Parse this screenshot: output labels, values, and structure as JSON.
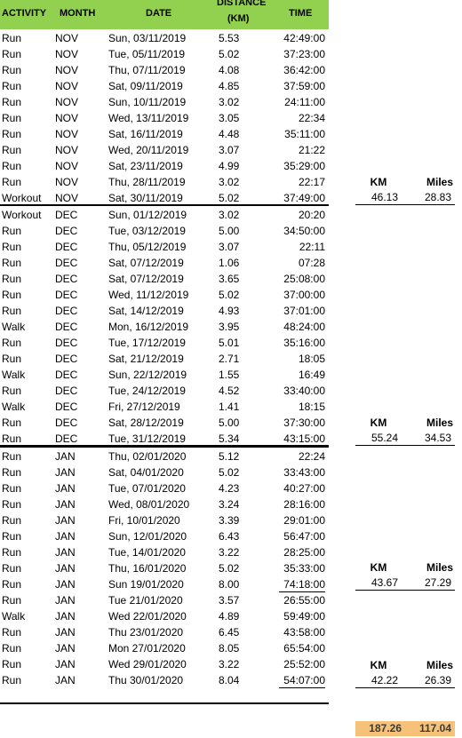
{
  "header": {
    "activity": "ACTIVITY",
    "month": "MONTH",
    "date": "DATE",
    "distance_line1": "DISTANCE",
    "distance_line2": "(KM)",
    "time": "TIME"
  },
  "rows": [
    [
      "Run",
      "NOV",
      "Sun, 03/11/2019",
      "5.53",
      "42:49:00"
    ],
    [
      "Run",
      "NOV",
      "Tue, 05/11/2019",
      "5.02",
      "37:23:00"
    ],
    [
      "Run",
      "NOV",
      "Thu, 07/11/2019",
      "4.08",
      "36:42:00"
    ],
    [
      "Run",
      "NOV",
      "Sat, 09/11/2019",
      "4.85",
      "37:59:00"
    ],
    [
      "Run",
      "NOV",
      "Sun, 10/11/2019",
      "3.02",
      "24:11:00"
    ],
    [
      "Run",
      "NOV",
      "Wed, 13/11/2019",
      "3.05",
      "22:34"
    ],
    [
      "Run",
      "NOV",
      "Sat, 16/11/2019",
      "4.48",
      "35:11:00"
    ],
    [
      "Run",
      "NOV",
      "Wed, 20/11/2019",
      "3.07",
      "21:22"
    ],
    [
      "Run",
      "NOV",
      "Sat, 23/11/2019",
      "4.99",
      "35:29:00"
    ],
    [
      "Run",
      "NOV",
      "Thu, 28/11/2019",
      "3.02",
      "22:17"
    ],
    [
      "Workout",
      "NOV",
      "Sat, 30/11/2019",
      "5.02",
      "37:49:00"
    ],
    [
      "Workout",
      "DEC",
      "Sun, 01/12/2019",
      "3.02",
      "20:20"
    ],
    [
      "Run",
      "DEC",
      "Tue, 03/12/2019",
      "5.00",
      "34:50:00"
    ],
    [
      "Run",
      "DEC",
      "Thu, 05/12/2019",
      "3.07",
      "22:11"
    ],
    [
      "Run",
      "DEC",
      "Sat, 07/12/2019",
      "1.06",
      "07:28"
    ],
    [
      "Run",
      "DEC",
      "Sat, 07/12/2019",
      "3.65",
      "25:08:00"
    ],
    [
      "Run",
      "DEC",
      "Wed, 11/12/2019",
      "5.02",
      "37:00:00"
    ],
    [
      "Run",
      "DEC",
      "Sat, 14/12/2019",
      "4.93",
      "37:01:00"
    ],
    [
      "Walk",
      "DEC",
      "Mon, 16/12/2019",
      "3.95",
      "48:24:00"
    ],
    [
      "Run",
      "DEC",
      "Tue, 17/12/2019",
      "5.01",
      "35:16:00"
    ],
    [
      "Run",
      "DEC",
      "Sat, 21/12/2019",
      "2.71",
      "18:05"
    ],
    [
      "Walk",
      "DEC",
      "Sun, 22/12/2019",
      "1.55",
      "16:49"
    ],
    [
      "Run",
      "DEC",
      "Tue, 24/12/2019",
      "4.52",
      "33:40:00"
    ],
    [
      "Walk",
      "DEC",
      "Fri, 27/12/2019",
      "1.41",
      "18:15"
    ],
    [
      "Run",
      "DEC",
      "Sat, 28/12/2019",
      "5.00",
      "37:30:00"
    ],
    [
      "Run",
      "DEC",
      "Tue, 31/12/2019",
      "5.34",
      "43:15:00"
    ],
    [
      "Run",
      "JAN",
      "Thu, 02/01/2020",
      "5.12",
      "22:24"
    ],
    [
      "Run",
      "JAN",
      "Sat, 04/01/2020",
      "5.02",
      "33:43:00"
    ],
    [
      "Run",
      "JAN",
      "Tue, 07/01/2020",
      "4.23",
      "40:27:00"
    ],
    [
      "Run",
      "JAN",
      "Wed, 08/01/2020",
      "3.24",
      "28:16:00"
    ],
    [
      "Run",
      "JAN",
      "Fri, 10/01/2020",
      "3.39",
      "29:01:00"
    ],
    [
      "Run",
      "JAN",
      "Sun, 12/01/2020",
      "6.43",
      "56:47:00"
    ],
    [
      "Run",
      "JAN",
      "Tue, 14/01/2020",
      "3.22",
      "28:25:00"
    ],
    [
      "Run",
      "JAN",
      "Thu, 16/01/2020",
      "5.02",
      "35:33:00"
    ],
    [
      "Run",
      "JAN",
      "Sun 19/01/2020",
      "8.00",
      "74:18:00"
    ],
    [
      "Run",
      "JAN",
      "Tue 21/01/2020",
      "3.57",
      "26:55:00"
    ],
    [
      "Walk",
      "JAN",
      "Wed 22/01/2020",
      "4.89",
      "59:49:00"
    ],
    [
      "Run",
      "JAN",
      "Thu 23/01/2020",
      "6.45",
      "43:58:00"
    ],
    [
      "Run",
      "JAN",
      "Mon 27/01/2020",
      "8.05",
      "65:54:00"
    ],
    [
      "Run",
      "JAN",
      "Wed 29/01/2020",
      "3.22",
      "25:52:00"
    ],
    [
      "Run",
      "JAN",
      "Thu 30/01/2020",
      "8.04",
      "54:07:00"
    ]
  ],
  "summaries": [
    {
      "km_label": "KM",
      "miles_label": "Miles",
      "km": "46.13",
      "miles": "28.83"
    },
    {
      "km_label": "KM",
      "miles_label": "Miles",
      "km": "55.24",
      "miles": "34.53"
    },
    {
      "km_label": "KM",
      "miles_label": "Miles",
      "km": "43.67",
      "miles": "27.29"
    },
    {
      "km_label": "KM",
      "miles_label": "Miles",
      "km": "42.22",
      "miles": "26.39"
    }
  ],
  "totals": {
    "km": "187.26",
    "miles": "117.04"
  }
}
